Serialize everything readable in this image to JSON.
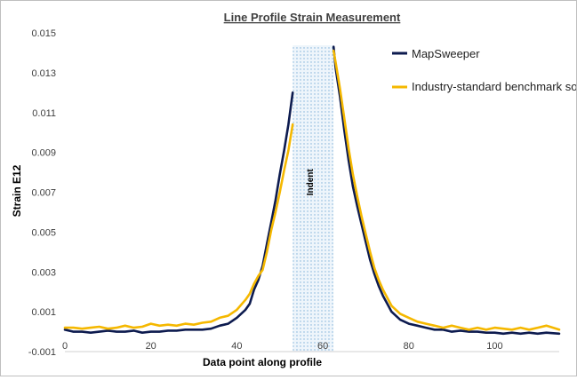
{
  "chart_data": {
    "type": "line",
    "title": "Line Profile Strain Measurement",
    "xlabel": "Data point along profile",
    "ylabel": "Strain E12",
    "xlim": [
      0,
      115
    ],
    "ylim": [
      -0.001,
      0.015
    ],
    "x_ticks": [
      "0",
      "20",
      "40",
      "60",
      "80",
      "100"
    ],
    "x_tick_values": [
      0,
      20,
      40,
      60,
      80,
      100
    ],
    "y_ticks": [
      "0.015",
      "0.013",
      "0.011",
      "0.009",
      "0.007",
      "0.005",
      "0.003",
      "0.001",
      "-0.001"
    ],
    "y_tick_values": [
      0.015,
      0.013,
      0.011,
      0.009,
      0.007,
      0.005,
      0.003,
      0.001,
      -0.001
    ],
    "grid": false,
    "legend_position": "top-right",
    "annotation": {
      "label": "Indent",
      "x_range": [
        53,
        62.5
      ]
    },
    "series": [
      {
        "name": "MapSweeper",
        "color": "#0d1b4f",
        "points": [
          [
            0,
            0.0001
          ],
          [
            2,
            0.0
          ],
          [
            4,
            0.0
          ],
          [
            6,
            -5e-05
          ],
          [
            8,
            0.0
          ],
          [
            10,
            5e-05
          ],
          [
            12,
            0.0
          ],
          [
            14,
            0.0
          ],
          [
            16,
            5e-05
          ],
          [
            18,
            -5e-05
          ],
          [
            20,
            0.0
          ],
          [
            22,
            0.0
          ],
          [
            24,
            5e-05
          ],
          [
            26,
            5e-05
          ],
          [
            28,
            0.0001
          ],
          [
            30,
            0.0001
          ],
          [
            32,
            0.0001
          ],
          [
            34,
            0.00015
          ],
          [
            36,
            0.0003
          ],
          [
            38,
            0.0004
          ],
          [
            40,
            0.0007
          ],
          [
            42,
            0.0011
          ],
          [
            43,
            0.0014
          ],
          [
            44,
            0.0021
          ],
          [
            45,
            0.0026
          ],
          [
            46,
            0.0033
          ],
          [
            47,
            0.0044
          ],
          [
            48,
            0.0055
          ],
          [
            49,
            0.0066
          ],
          [
            50,
            0.0079
          ],
          [
            51,
            0.0091
          ],
          [
            52,
            0.0104
          ],
          [
            53,
            0.012
          ],
          [
            null,
            null
          ],
          [
            62.5,
            0.0143
          ],
          [
            63,
            0.0132
          ],
          [
            64,
            0.0118
          ],
          [
            65,
            0.0101
          ],
          [
            66,
            0.0086
          ],
          [
            67,
            0.0073
          ],
          [
            68,
            0.0063
          ],
          [
            69,
            0.0054
          ],
          [
            70,
            0.0045
          ],
          [
            71,
            0.0036
          ],
          [
            72,
            0.0029
          ],
          [
            73,
            0.0023
          ],
          [
            74,
            0.0018
          ],
          [
            75,
            0.0014
          ],
          [
            76,
            0.001
          ],
          [
            78,
            0.0006
          ],
          [
            80,
            0.0004
          ],
          [
            82,
            0.0003
          ],
          [
            84,
            0.0002
          ],
          [
            86,
            0.0001
          ],
          [
            88,
            0.0001
          ],
          [
            90,
            0.0
          ],
          [
            92,
            5e-05
          ],
          [
            94,
            0.0
          ],
          [
            96,
            0.0
          ],
          [
            98,
            -5e-05
          ],
          [
            100,
            -5e-05
          ],
          [
            102,
            -0.0001
          ],
          [
            104,
            -5e-05
          ],
          [
            106,
            -0.0001
          ],
          [
            108,
            -5e-05
          ],
          [
            110,
            -0.0001
          ],
          [
            112,
            -5e-05
          ],
          [
            115,
            -0.0001
          ]
        ]
      },
      {
        "name": "Industry-standard benchmark software",
        "color": "#f5b800",
        "points": [
          [
            0,
            0.0002
          ],
          [
            2,
            0.0002
          ],
          [
            4,
            0.00015
          ],
          [
            6,
            0.0002
          ],
          [
            8,
            0.00025
          ],
          [
            10,
            0.00015
          ],
          [
            12,
            0.0002
          ],
          [
            14,
            0.0003
          ],
          [
            16,
            0.0002
          ],
          [
            18,
            0.00025
          ],
          [
            20,
            0.0004
          ],
          [
            22,
            0.0003
          ],
          [
            24,
            0.00035
          ],
          [
            26,
            0.0003
          ],
          [
            28,
            0.0004
          ],
          [
            30,
            0.00035
          ],
          [
            32,
            0.00045
          ],
          [
            34,
            0.0005
          ],
          [
            36,
            0.0007
          ],
          [
            38,
            0.0008
          ],
          [
            40,
            0.0011
          ],
          [
            42,
            0.0016
          ],
          [
            43,
            0.0019
          ],
          [
            44,
            0.0024
          ],
          [
            45,
            0.0028
          ],
          [
            46,
            0.0031
          ],
          [
            47,
            0.004
          ],
          [
            48,
            0.0051
          ],
          [
            49,
            0.006
          ],
          [
            50,
            0.007
          ],
          [
            51,
            0.0081
          ],
          [
            52,
            0.0091
          ],
          [
            53,
            0.0104
          ],
          [
            null,
            null
          ],
          [
            62.5,
            0.0141
          ],
          [
            63,
            0.0135
          ],
          [
            64,
            0.0122
          ],
          [
            65,
            0.0107
          ],
          [
            66,
            0.0092
          ],
          [
            67,
            0.0079
          ],
          [
            68,
            0.0068
          ],
          [
            69,
            0.0058
          ],
          [
            70,
            0.0049
          ],
          [
            71,
            0.004
          ],
          [
            72,
            0.0032
          ],
          [
            73,
            0.0026
          ],
          [
            74,
            0.0021
          ],
          [
            75,
            0.0017
          ],
          [
            76,
            0.0013
          ],
          [
            78,
            0.0009
          ],
          [
            80,
            0.0007
          ],
          [
            82,
            0.0005
          ],
          [
            84,
            0.0004
          ],
          [
            86,
            0.0003
          ],
          [
            88,
            0.0002
          ],
          [
            90,
            0.0003
          ],
          [
            92,
            0.0002
          ],
          [
            94,
            0.0001
          ],
          [
            96,
            0.0002
          ],
          [
            98,
            0.0001
          ],
          [
            100,
            0.0002
          ],
          [
            102,
            0.00015
          ],
          [
            104,
            0.0001
          ],
          [
            106,
            0.0002
          ],
          [
            108,
            0.0001
          ],
          [
            110,
            0.0002
          ],
          [
            112,
            0.0003
          ],
          [
            115,
            0.0001
          ]
        ]
      }
    ]
  }
}
